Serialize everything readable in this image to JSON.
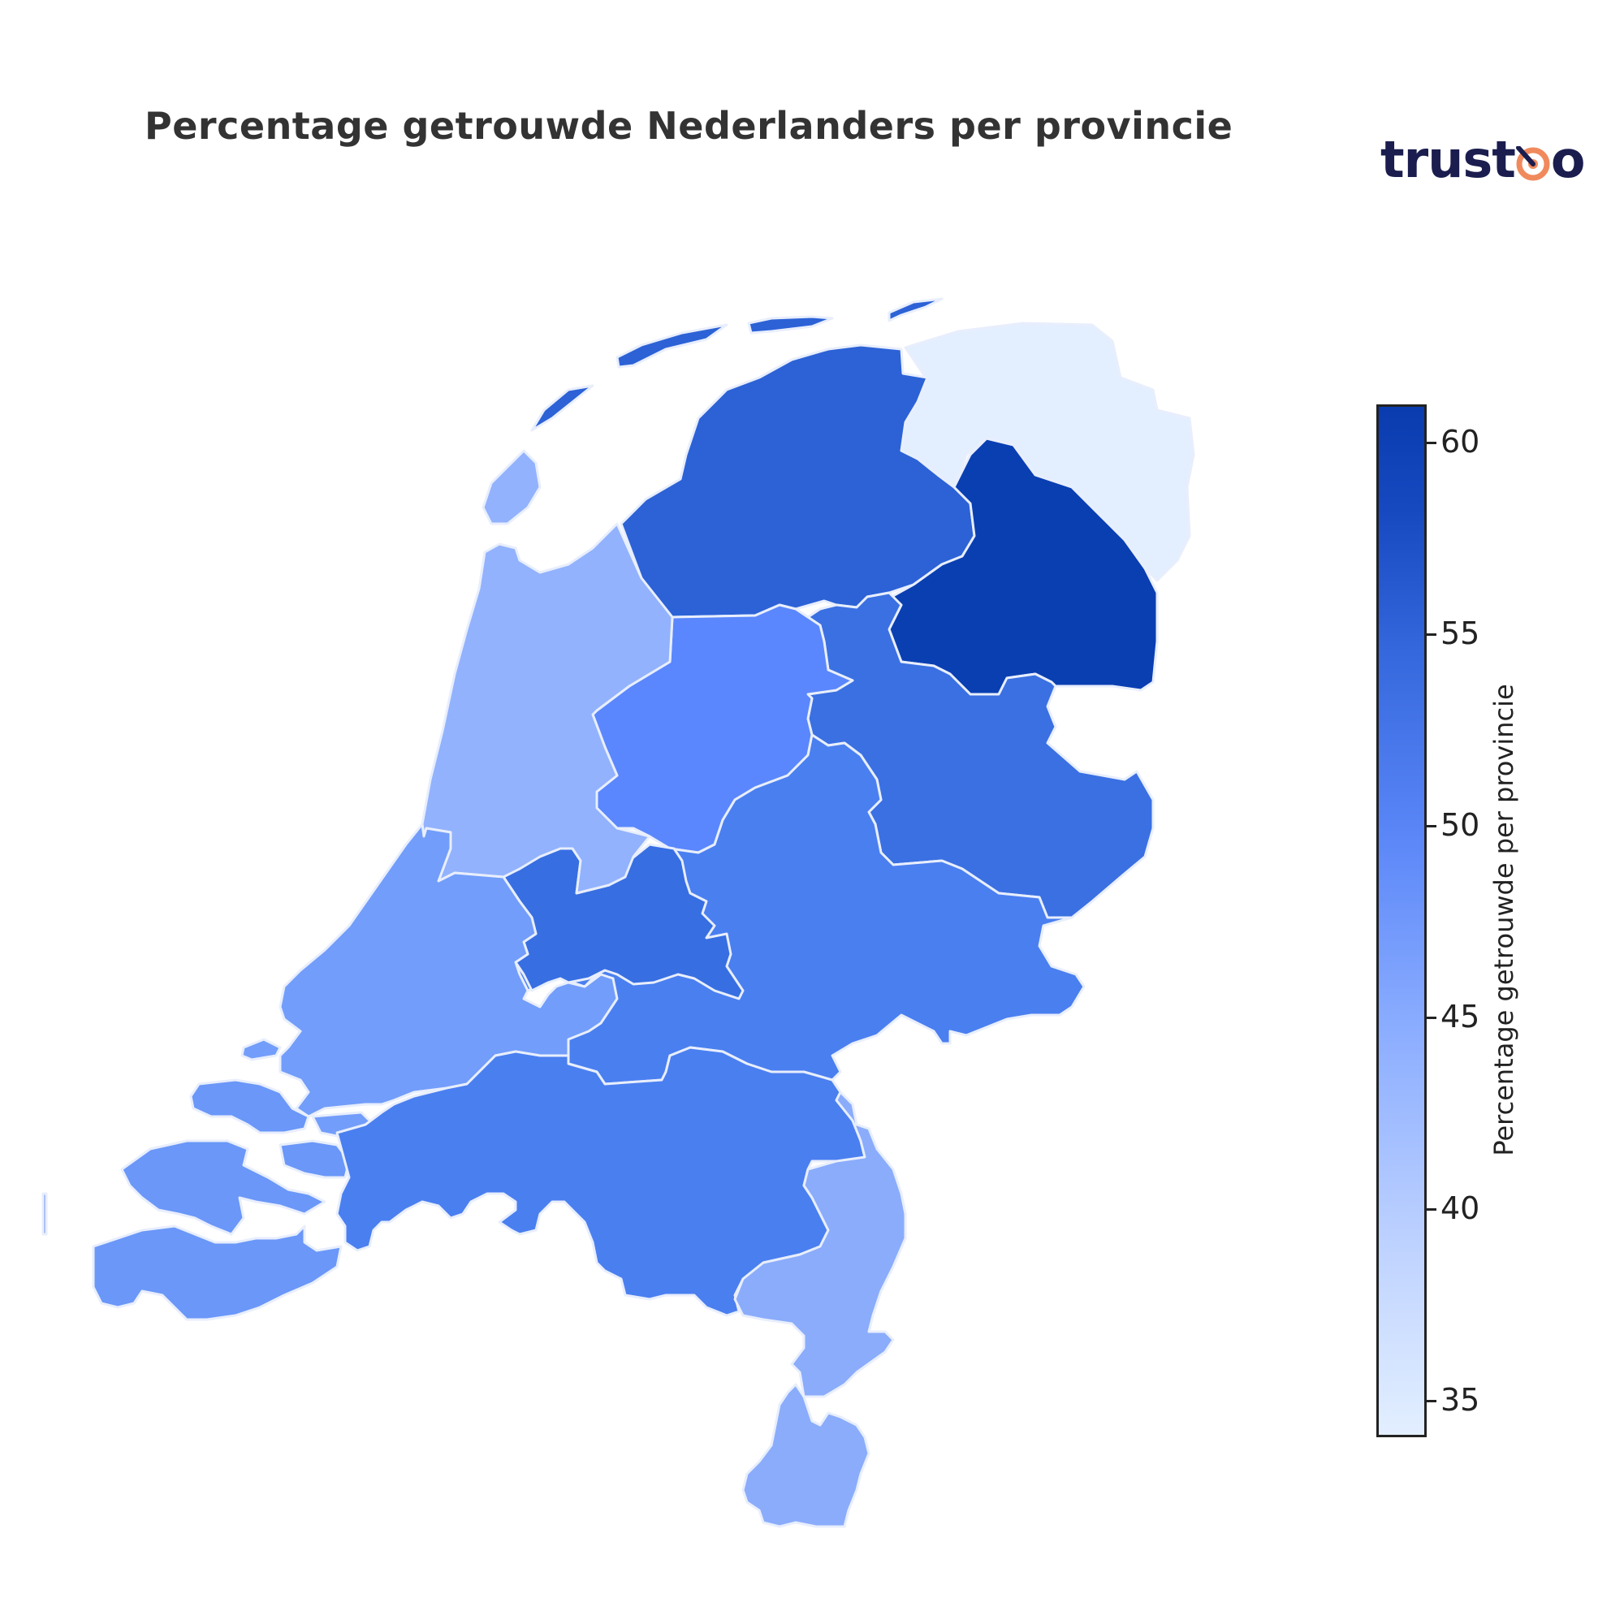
{
  "title": "Percentage getrouwde Nederlanders per provincie",
  "logo": {
    "text_left": "trust",
    "text_right": "o",
    "accent_color": "#f08a5d",
    "text_color": "#1a1d4e"
  },
  "colorbar": {
    "label": "Percentage getrouwde per provincie",
    "min": 34,
    "max": 61,
    "ticks": [
      "35",
      "40",
      "45",
      "50",
      "55",
      "60"
    ],
    "tick_values": [
      35,
      40,
      45,
      50,
      55,
      60
    ],
    "colorscale": [
      "#e3efff",
      "#bfd3ff",
      "#8aacff",
      "#5b87f8",
      "#3568dd",
      "#1648c0",
      "#0a3caf"
    ]
  },
  "regions": [
    {
      "name": "Groningen",
      "color": "#e3efff"
    },
    {
      "name": "Friesland",
      "color": "#2c62d6"
    },
    {
      "name": "Drenthe",
      "color": "#0a3fb2"
    },
    {
      "name": "Overijssel",
      "color": "#3a70e2"
    },
    {
      "name": "Flevoland",
      "color": "#5a87fd"
    },
    {
      "name": "Gelderland",
      "color": "#4a7ff0"
    },
    {
      "name": "Utrecht",
      "color": "#376ee2"
    },
    {
      "name": "Noord-Holland",
      "color": "#92b2fd"
    },
    {
      "name": "Zuid-Holland",
      "color": "#729dfa"
    },
    {
      "name": "Zeeland",
      "color": "#6a97f8"
    },
    {
      "name": "Noord-Brabant",
      "color": "#4a7ff0"
    },
    {
      "name": "Limburg",
      "color": "#8aacfb"
    }
  ]
}
